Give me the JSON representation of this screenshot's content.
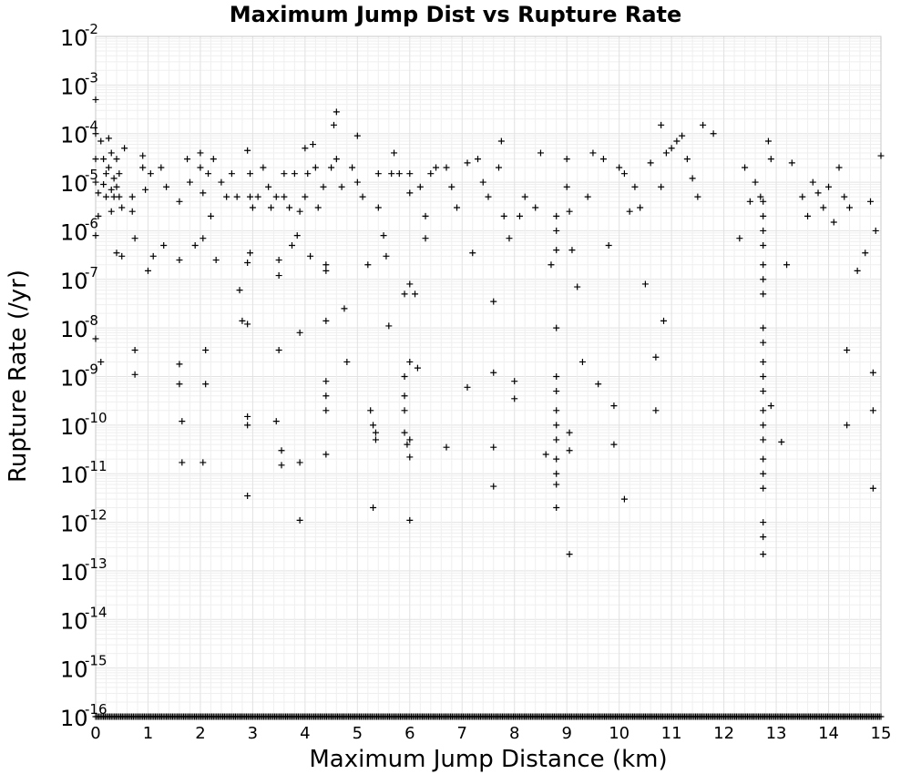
{
  "chart_data": {
    "type": "scatter",
    "title": "Maximum Jump Dist vs Rupture Rate",
    "xlabel": "Maximum Jump Distance (km)",
    "ylabel": "Rupture Rate (/yr)",
    "xlim": [
      0,
      15
    ],
    "ylim": [
      1e-16,
      0.01
    ],
    "yscale": "log",
    "grid": true,
    "marker": "+",
    "x_ticks": [
      "0",
      "1",
      "2",
      "3",
      "4",
      "5",
      "6",
      "7",
      "8",
      "9",
      "10",
      "11",
      "12",
      "13",
      "14",
      "15"
    ],
    "y_ticks": [
      {
        "base": "10",
        "exp": "-2"
      },
      {
        "base": "10",
        "exp": "-3"
      },
      {
        "base": "10",
        "exp": "-4"
      },
      {
        "base": "10",
        "exp": "-5"
      },
      {
        "base": "10",
        "exp": "-6"
      },
      {
        "base": "10",
        "exp": "-7"
      },
      {
        "base": "10",
        "exp": "-8"
      },
      {
        "base": "10",
        "exp": "-9"
      },
      {
        "base": "10",
        "exp": "-10"
      },
      {
        "base": "10",
        "exp": "-11"
      },
      {
        "base": "10",
        "exp": "-12"
      },
      {
        "base": "10",
        "exp": "-13"
      },
      {
        "base": "10",
        "exp": "-14"
      },
      {
        "base": "10",
        "exp": "-15"
      },
      {
        "base": "10",
        "exp": "-16"
      }
    ],
    "series": [
      {
        "points": [
          [
            0.0,
            0.0005
          ],
          [
            0.0,
            0.0001
          ],
          [
            0.0,
            3e-05
          ],
          [
            0.0,
            1e-05
          ],
          [
            0.05,
            6e-06
          ],
          [
            0.05,
            2e-06
          ],
          [
            0.0,
            8e-07
          ],
          [
            0.0,
            6e-09
          ],
          [
            0.1,
            2e-09
          ],
          [
            0.1,
            7e-05
          ],
          [
            0.15,
            3e-05
          ],
          [
            0.15,
            9e-06
          ],
          [
            0.2,
            1.5e-05
          ],
          [
            0.2,
            5e-06
          ],
          [
            0.25,
            8e-05
          ],
          [
            0.25,
            2e-05
          ],
          [
            0.3,
            4e-05
          ],
          [
            0.3,
            7e-06
          ],
          [
            0.3,
            2.5e-06
          ],
          [
            0.35,
            1.2e-05
          ],
          [
            0.35,
            5e-06
          ],
          [
            0.4,
            3e-05
          ],
          [
            0.4,
            8e-06
          ],
          [
            0.4,
            3.5e-07
          ],
          [
            0.45,
            1.5e-05
          ],
          [
            0.45,
            5e-06
          ],
          [
            0.5,
            3e-06
          ],
          [
            0.5,
            3e-07
          ],
          [
            0.55,
            5e-05
          ],
          [
            0.7,
            5e-06
          ],
          [
            0.7,
            2.5e-06
          ],
          [
            0.75,
            7e-07
          ],
          [
            0.75,
            3.5e-09
          ],
          [
            0.75,
            1.1e-09
          ],
          [
            0.9,
            3.5e-05
          ],
          [
            0.9,
            2e-05
          ],
          [
            0.95,
            7e-06
          ],
          [
            1.0,
            1.5e-07
          ],
          [
            1.05,
            1.5e-05
          ],
          [
            1.1,
            3e-07
          ],
          [
            1.25,
            2e-05
          ],
          [
            1.3,
            5e-07
          ],
          [
            1.35,
            8e-06
          ],
          [
            1.6,
            4e-06
          ],
          [
            1.6,
            2.5e-07
          ],
          [
            1.6,
            1.8e-09
          ],
          [
            1.6,
            7e-10
          ],
          [
            1.65,
            1.2e-10
          ],
          [
            1.65,
            1.7e-11
          ],
          [
            1.75,
            3e-05
          ],
          [
            1.8,
            1e-05
          ],
          [
            1.9,
            5e-07
          ],
          [
            2.0,
            4e-05
          ],
          [
            2.0,
            2e-05
          ],
          [
            2.05,
            6e-06
          ],
          [
            2.05,
            7e-07
          ],
          [
            2.1,
            3.5e-09
          ],
          [
            2.1,
            7e-10
          ],
          [
            2.05,
            1.7e-11
          ],
          [
            2.15,
            1.5e-05
          ],
          [
            2.2,
            2e-06
          ],
          [
            2.25,
            3e-05
          ],
          [
            2.3,
            2.5e-07
          ],
          [
            2.4,
            1e-05
          ],
          [
            2.5,
            5e-06
          ],
          [
            2.6,
            1.5e-05
          ],
          [
            2.7,
            5e-06
          ],
          [
            2.75,
            6e-08
          ],
          [
            2.8,
            1.4e-08
          ],
          [
            2.9,
            4.5e-05
          ],
          [
            2.9,
            1.2e-08
          ],
          [
            2.95,
            1.5e-05
          ],
          [
            2.95,
            5e-06
          ],
          [
            2.9,
            2.2e-07
          ],
          [
            2.95,
            3.5e-07
          ],
          [
            2.9,
            1.5e-10
          ],
          [
            2.9,
            1e-10
          ],
          [
            2.9,
            3.5e-12
          ],
          [
            3.0,
            3e-06
          ],
          [
            3.1,
            5e-06
          ],
          [
            3.2,
            2e-05
          ],
          [
            3.3,
            8e-06
          ],
          [
            3.35,
            3e-06
          ],
          [
            3.45,
            5e-06
          ],
          [
            3.5,
            2.5e-07
          ],
          [
            3.5,
            1.2e-07
          ],
          [
            3.45,
            1.2e-10
          ],
          [
            3.55,
            3e-11
          ],
          [
            3.55,
            1.5e-11
          ],
          [
            3.5,
            3.5e-09
          ],
          [
            3.6,
            1.5e-05
          ],
          [
            3.6,
            5e-06
          ],
          [
            3.7,
            3e-06
          ],
          [
            3.75,
            5e-07
          ],
          [
            3.8,
            1.5e-05
          ],
          [
            3.85,
            8e-07
          ],
          [
            3.9,
            2.5e-06
          ],
          [
            3.9,
            8e-09
          ],
          [
            3.9,
            1.7e-11
          ],
          [
            3.9,
            1.1e-12
          ],
          [
            4.0,
            5e-05
          ],
          [
            4.0,
            5e-06
          ],
          [
            4.05,
            1.5e-05
          ],
          [
            4.1,
            3e-07
          ],
          [
            4.15,
            6e-05
          ],
          [
            4.2,
            2e-05
          ],
          [
            4.25,
            3e-06
          ],
          [
            4.35,
            8e-06
          ],
          [
            4.4,
            2e-07
          ],
          [
            4.4,
            1.5e-07
          ],
          [
            4.4,
            1.4e-08
          ],
          [
            4.4,
            8e-10
          ],
          [
            4.4,
            4e-10
          ],
          [
            4.4,
            2e-10
          ],
          [
            4.4,
            2.5e-11
          ],
          [
            4.5,
            2e-05
          ],
          [
            4.55,
            0.00015
          ],
          [
            4.6,
            0.00028
          ],
          [
            4.6,
            3e-05
          ],
          [
            4.7,
            8e-06
          ],
          [
            4.75,
            2.5e-08
          ],
          [
            4.8,
            2e-09
          ],
          [
            4.9,
            2e-05
          ],
          [
            5.0,
            9e-05
          ],
          [
            5.0,
            1e-05
          ],
          [
            5.1,
            5e-06
          ],
          [
            5.2,
            2e-07
          ],
          [
            5.25,
            2e-10
          ],
          [
            5.3,
            1e-10
          ],
          [
            5.35,
            7e-11
          ],
          [
            5.35,
            5e-11
          ],
          [
            5.3,
            2e-12
          ],
          [
            5.4,
            1.5e-05
          ],
          [
            5.4,
            3e-06
          ],
          [
            5.5,
            8e-07
          ],
          [
            5.55,
            3e-07
          ],
          [
            5.6,
            1.1e-08
          ],
          [
            5.65,
            1.5e-05
          ],
          [
            5.7,
            4e-05
          ],
          [
            5.8,
            1.5e-05
          ],
          [
            5.9,
            5e-08
          ],
          [
            5.9,
            1e-09
          ],
          [
            5.9,
            4e-10
          ],
          [
            5.9,
            2e-10
          ],
          [
            5.9,
            7e-11
          ],
          [
            5.95,
            4e-11
          ],
          [
            6.0,
            1.5e-05
          ],
          [
            6.0,
            6e-06
          ],
          [
            6.0,
            8e-08
          ],
          [
            6.0,
            2e-09
          ],
          [
            6.0,
            5e-11
          ],
          [
            6.0,
            2.2e-11
          ],
          [
            6.0,
            1.1e-12
          ],
          [
            6.1,
            5e-08
          ],
          [
            6.15,
            1.5e-09
          ],
          [
            6.2,
            8e-06
          ],
          [
            6.3,
            2e-06
          ],
          [
            6.3,
            7e-07
          ],
          [
            6.4,
            1.5e-05
          ],
          [
            6.5,
            2e-05
          ],
          [
            6.7,
            2e-05
          ],
          [
            6.7,
            3.5e-11
          ],
          [
            6.8,
            8e-06
          ],
          [
            6.9,
            3e-06
          ],
          [
            7.1,
            2.5e-05
          ],
          [
            7.1,
            6e-10
          ],
          [
            7.2,
            3.5e-07
          ],
          [
            7.3,
            3e-05
          ],
          [
            7.4,
            1e-05
          ],
          [
            7.5,
            5e-06
          ],
          [
            7.6,
            3.5e-08
          ],
          [
            7.6,
            1.2e-09
          ],
          [
            7.6,
            3.5e-11
          ],
          [
            7.6,
            5.5e-12
          ],
          [
            7.7,
            2e-05
          ],
          [
            7.75,
            7e-05
          ],
          [
            7.8,
            2e-06
          ],
          [
            7.9,
            7e-07
          ],
          [
            8.0,
            8e-10
          ],
          [
            8.0,
            3.5e-10
          ],
          [
            8.1,
            2e-06
          ],
          [
            8.2,
            5e-06
          ],
          [
            8.4,
            3e-06
          ],
          [
            8.5,
            4e-05
          ],
          [
            8.6,
            2.5e-11
          ],
          [
            8.7,
            2e-07
          ],
          [
            8.8,
            2e-06
          ],
          [
            8.8,
            1e-06
          ],
          [
            8.8,
            4e-07
          ],
          [
            8.8,
            1e-08
          ],
          [
            8.8,
            1e-09
          ],
          [
            8.8,
            5e-10
          ],
          [
            8.8,
            2e-10
          ],
          [
            8.8,
            1e-10
          ],
          [
            8.8,
            5e-11
          ],
          [
            8.8,
            2e-11
          ],
          [
            8.8,
            1e-11
          ],
          [
            8.8,
            6e-12
          ],
          [
            8.8,
            2e-12
          ],
          [
            9.0,
            3e-05
          ],
          [
            9.0,
            8e-06
          ],
          [
            9.05,
            2.5e-06
          ],
          [
            9.05,
            2.2e-13
          ],
          [
            9.05,
            3e-11
          ],
          [
            9.05,
            7e-11
          ],
          [
            9.1,
            4e-07
          ],
          [
            9.2,
            7e-08
          ],
          [
            9.3,
            2e-09
          ],
          [
            9.4,
            5e-06
          ],
          [
            9.5,
            4e-05
          ],
          [
            9.6,
            7e-10
          ],
          [
            9.7,
            3e-05
          ],
          [
            9.8,
            5e-07
          ],
          [
            9.9,
            2.5e-10
          ],
          [
            9.9,
            4e-11
          ],
          [
            10.0,
            2e-05
          ],
          [
            10.1,
            1.5e-05
          ],
          [
            10.1,
            3e-12
          ],
          [
            10.2,
            2.5e-06
          ],
          [
            10.3,
            8e-06
          ],
          [
            10.4,
            3e-06
          ],
          [
            10.5,
            8e-08
          ],
          [
            10.6,
            2.5e-05
          ],
          [
            10.7,
            2e-10
          ],
          [
            10.7,
            2.5e-09
          ],
          [
            10.8,
            0.00015
          ],
          [
            10.8,
            8e-06
          ],
          [
            10.85,
            1.4e-08
          ],
          [
            10.9,
            4e-05
          ],
          [
            11.0,
            5e-05
          ],
          [
            11.1,
            7e-05
          ],
          [
            11.2,
            9e-05
          ],
          [
            11.3,
            3e-05
          ],
          [
            11.4,
            1.2e-05
          ],
          [
            11.5,
            5e-06
          ],
          [
            11.6,
            0.00015
          ],
          [
            11.8,
            0.0001
          ],
          [
            12.3,
            7e-07
          ],
          [
            12.4,
            2e-05
          ],
          [
            12.5,
            4e-06
          ],
          [
            12.6,
            1e-05
          ],
          [
            12.7,
            5e-06
          ],
          [
            12.75,
            4e-06
          ],
          [
            12.75,
            2e-06
          ],
          [
            12.75,
            1e-06
          ],
          [
            12.75,
            5e-07
          ],
          [
            12.75,
            2e-07
          ],
          [
            12.75,
            1e-07
          ],
          [
            12.75,
            5e-08
          ],
          [
            12.75,
            1e-08
          ],
          [
            12.75,
            5e-09
          ],
          [
            12.75,
            2e-09
          ],
          [
            12.75,
            1e-09
          ],
          [
            12.75,
            5e-10
          ],
          [
            12.75,
            2e-10
          ],
          [
            12.75,
            1e-10
          ],
          [
            12.75,
            5e-11
          ],
          [
            12.75,
            2e-11
          ],
          [
            12.75,
            1e-11
          ],
          [
            12.75,
            5e-12
          ],
          [
            12.75,
            1e-12
          ],
          [
            12.75,
            5e-13
          ],
          [
            12.75,
            2.2e-13
          ],
          [
            12.85,
            7e-05
          ],
          [
            12.9,
            3e-05
          ],
          [
            12.9,
            2.5e-10
          ],
          [
            13.1,
            4.5e-11
          ],
          [
            13.2,
            2e-07
          ],
          [
            13.3,
            2.5e-05
          ],
          [
            13.5,
            5e-06
          ],
          [
            13.6,
            2e-06
          ],
          [
            13.7,
            1e-05
          ],
          [
            13.8,
            6e-06
          ],
          [
            13.9,
            3e-06
          ],
          [
            14.0,
            8e-06
          ],
          [
            14.1,
            1.5e-06
          ],
          [
            14.2,
            2e-05
          ],
          [
            14.3,
            5e-06
          ],
          [
            14.35,
            3.5e-09
          ],
          [
            14.35,
            1e-10
          ],
          [
            14.4,
            3e-06
          ],
          [
            14.55,
            1.5e-07
          ],
          [
            14.7,
            3.5e-07
          ],
          [
            14.8,
            4e-06
          ],
          [
            14.85,
            1.2e-09
          ],
          [
            14.85,
            2e-10
          ],
          [
            14.85,
            5e-12
          ],
          [
            14.9,
            1e-06
          ],
          [
            15.0,
            3.5e-05
          ]
        ]
      },
      {
        "repeat_value": 1e-16,
        "x_range": [
          0.0,
          15.0
        ],
        "x_step": 0.03
      }
    ]
  }
}
